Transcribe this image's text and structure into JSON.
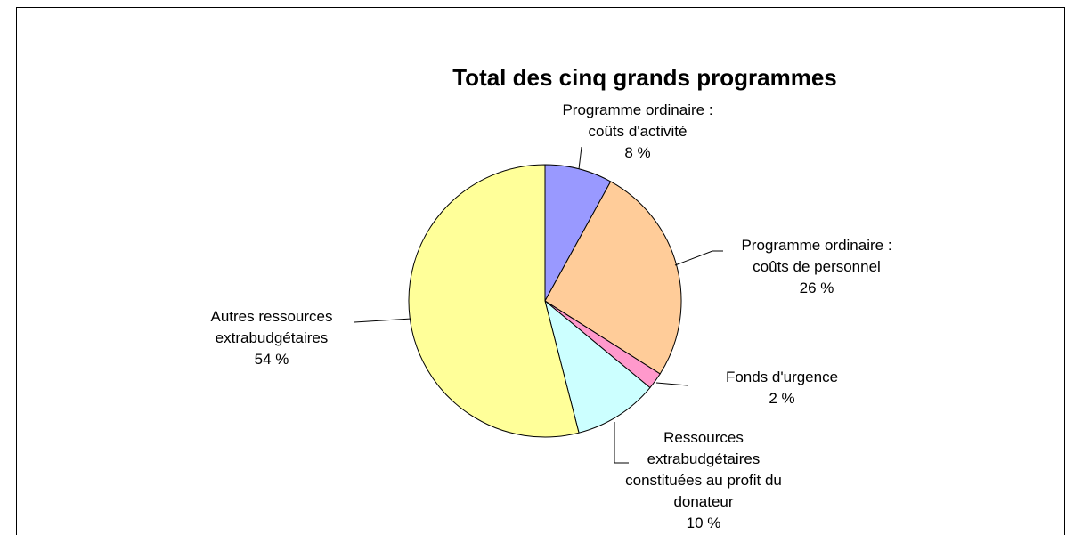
{
  "chart_data": {
    "type": "pie",
    "title": "Total des cinq grands programmes",
    "categories": [
      "Programme ordinaire : coûts d'activité",
      "Programme ordinaire : coûts de personnel",
      "Fonds d'urgence",
      "Ressources extrabudgétaires constituées au profit du donateur",
      "Autres ressources extrabudgétaires"
    ],
    "values": [
      8,
      26,
      2,
      10,
      54
    ],
    "value_labels": [
      "8 %",
      "26 %",
      "2 %",
      "10 %",
      "54 %"
    ],
    "colors": [
      "#9999ff",
      "#ffcc99",
      "#ff99cc",
      "#ccffff",
      "#ffff99"
    ]
  }
}
